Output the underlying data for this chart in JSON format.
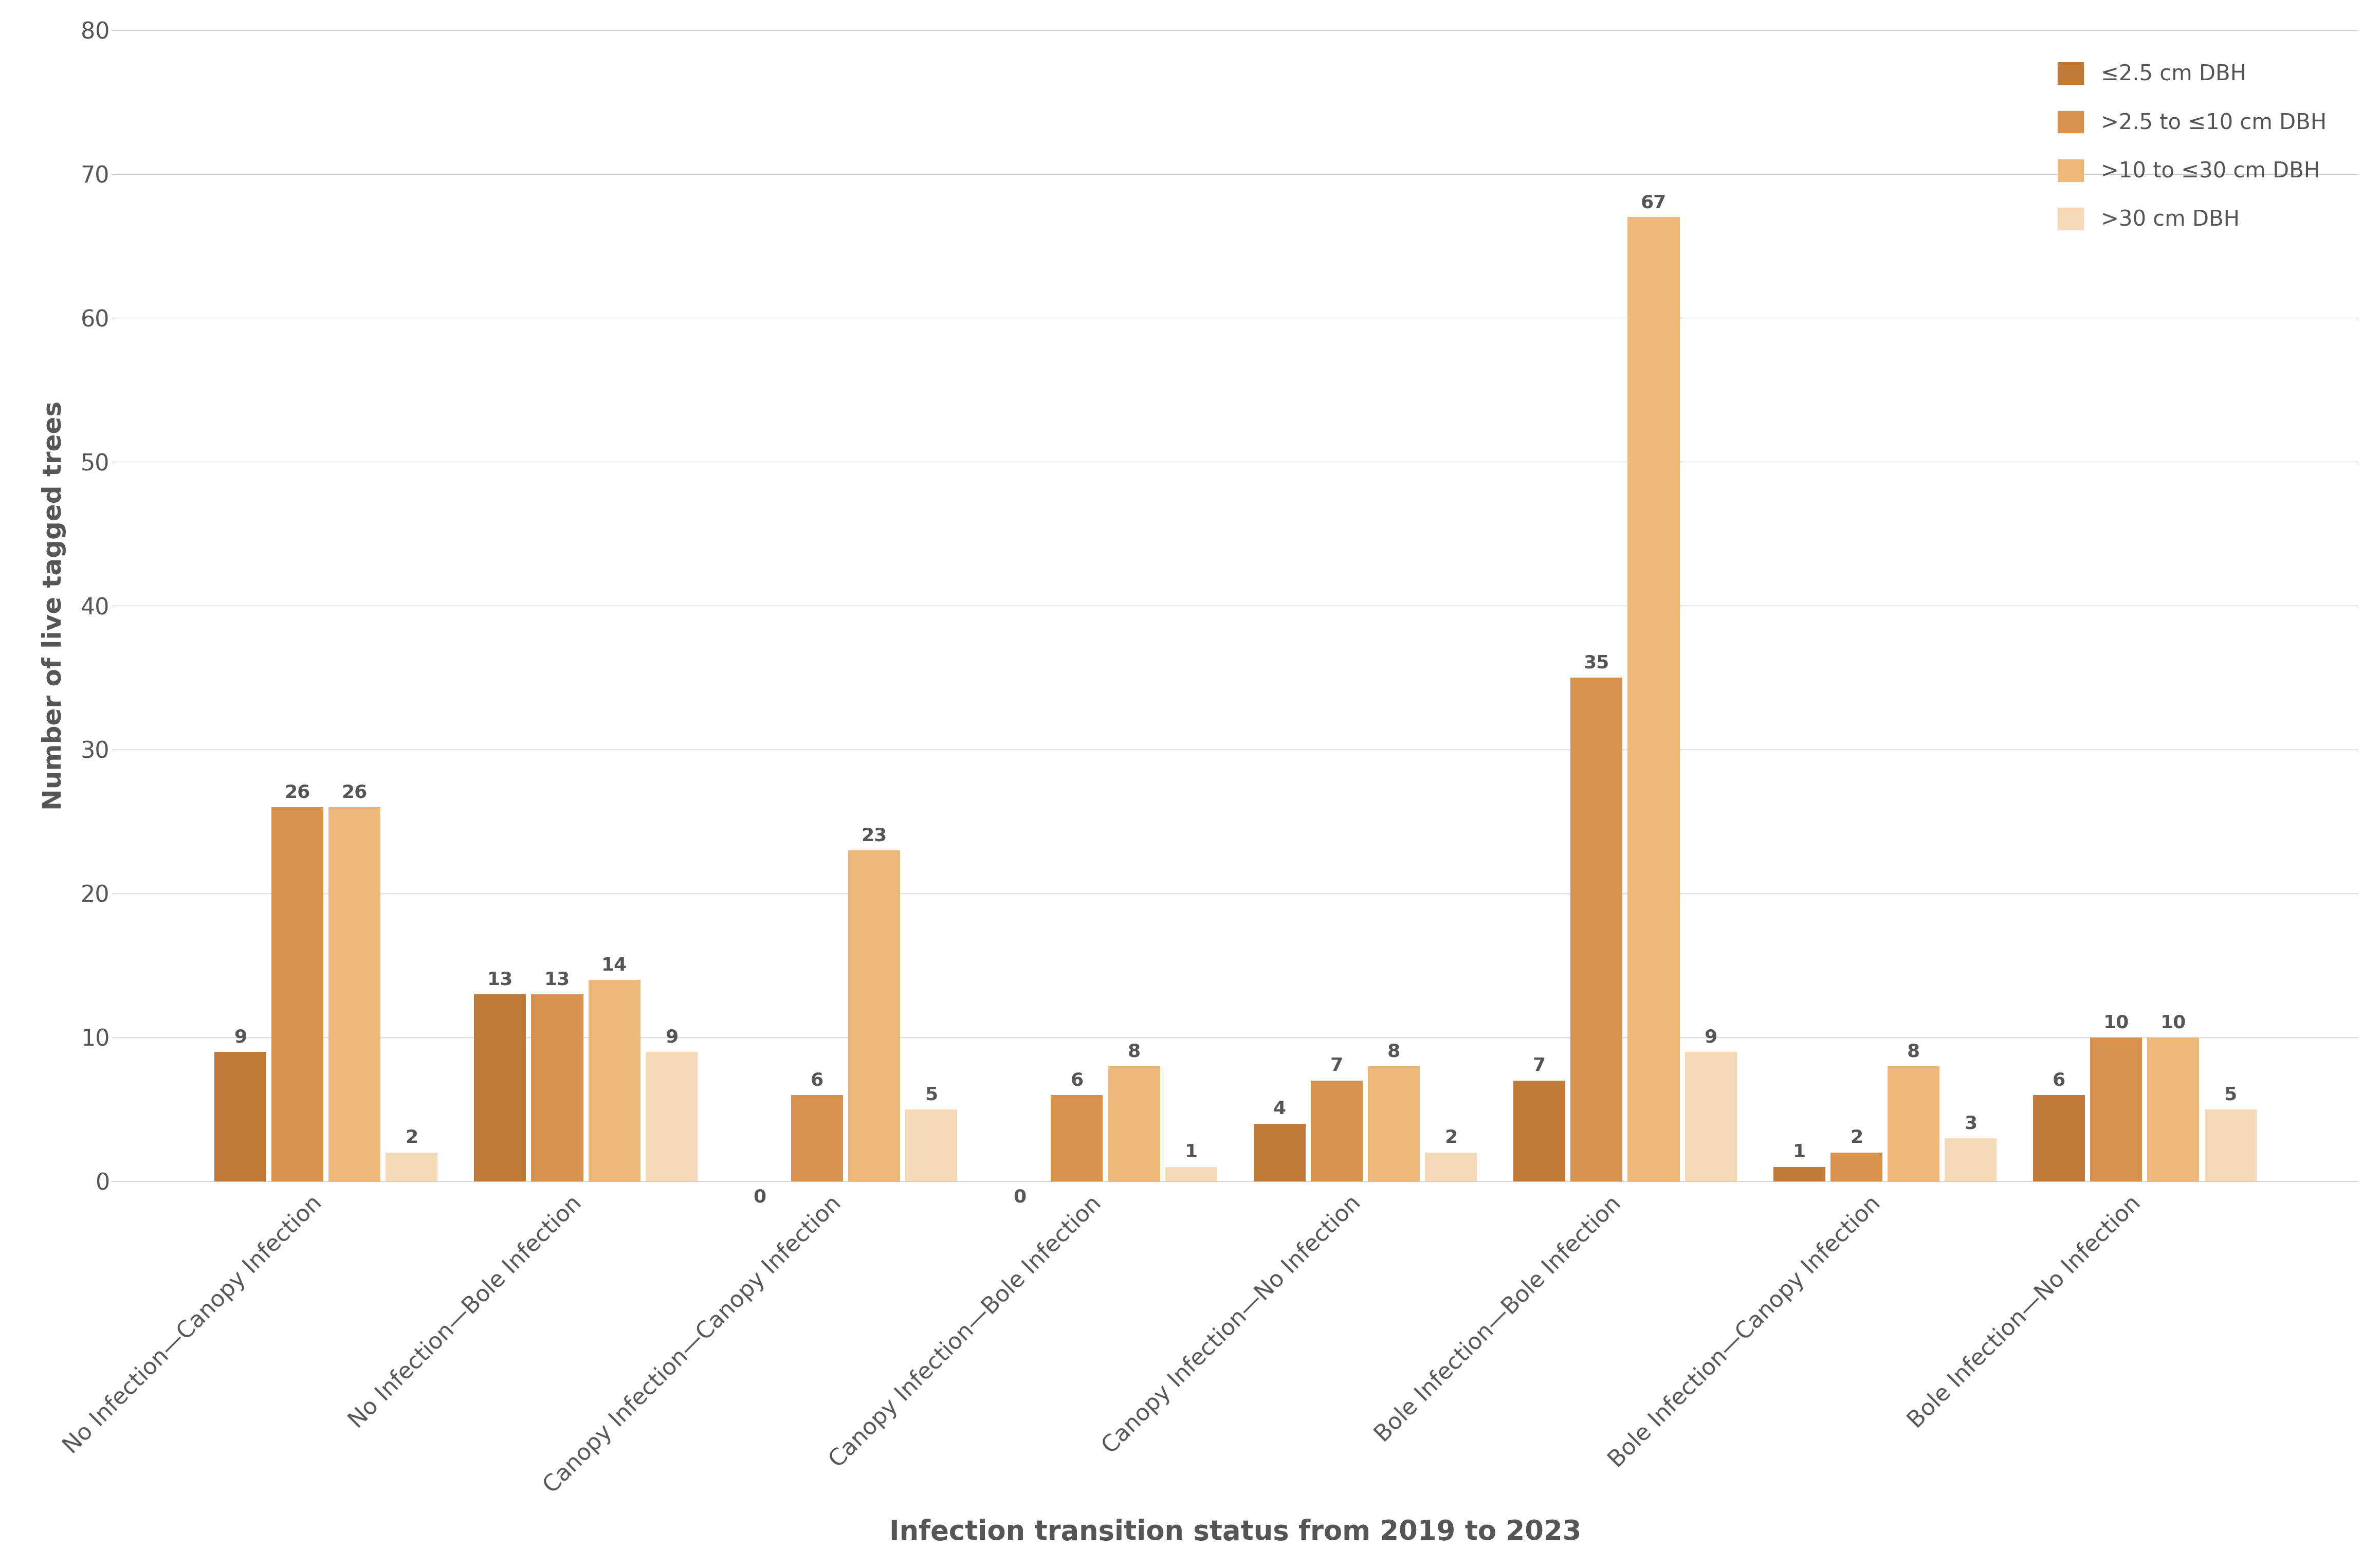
{
  "categories": [
    "No Infection→Canopy Infection",
    "No Infection→Bole Infection",
    "Canopy Infection→Canopy Infection",
    "Canopy Infection→Bole Infection",
    "Canopy Infection→No Infection",
    "Bole Infection→Bole Infection",
    "Bole Infection→Canopy Infection",
    "Bole Infection→No Infection"
  ],
  "series": [
    {
      "label": "≤2.5 cm DBH",
      "color": "#C17A3A",
      "values": [
        9,
        13,
        0,
        0,
        4,
        7,
        1,
        6
      ]
    },
    {
      "label": ">2.5 to ≤10 cm DBH",
      "color": "#D9924E",
      "values": [
        26,
        13,
        6,
        6,
        7,
        35,
        2,
        10
      ]
    },
    {
      "label": ">10 to ≤30 cm DBH",
      "color": "#EDB87A",
      "values": [
        26,
        14,
        23,
        8,
        8,
        67,
        8,
        10
      ]
    },
    {
      "label": ">30 cm DBH",
      "color": "#F5D9B8",
      "values": [
        2,
        9,
        5,
        1,
        2,
        9,
        3,
        5
      ]
    }
  ],
  "ylabel": "Number of live tagged trees",
  "xlabel": "Infection transition status from 2019 to 2023",
  "ylim": [
    0,
    80
  ],
  "yticks": [
    0,
    10,
    20,
    30,
    40,
    50,
    60,
    70,
    80
  ],
  "background_color": "#ffffff",
  "grid_color": "#cccccc",
  "tick_color": "#555555",
  "label_fontsize": 36,
  "tick_fontsize": 32,
  "legend_fontsize": 30,
  "bar_label_fontsize": 26,
  "xlabel_fontsize": 38
}
